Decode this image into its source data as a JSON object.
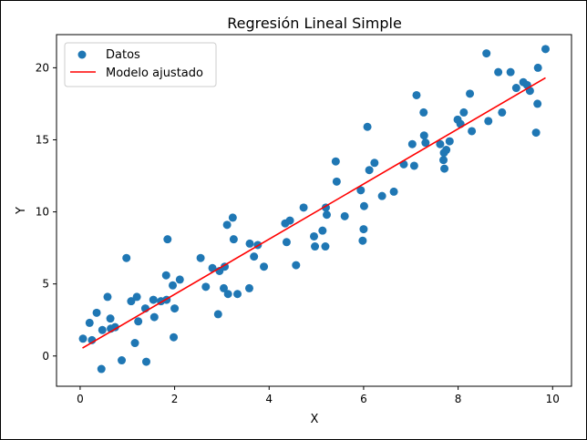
{
  "chart_data": {
    "type": "scatter",
    "title": "Regresión Lineal Simple",
    "xlabel": "X",
    "ylabel": "Y",
    "xlim": [
      -0.5,
      10.4
    ],
    "ylim": [
      -2.1,
      22.3
    ],
    "grid": false,
    "legend_position": "top-left",
    "x_ticks": [
      0,
      2,
      4,
      6,
      8,
      10
    ],
    "y_ticks": [
      0,
      5,
      10,
      15,
      20
    ],
    "x_tick_labels": [
      "0",
      "2",
      "4",
      "6",
      "8",
      "10"
    ],
    "y_tick_labels": [
      "0",
      "5",
      "10",
      "15",
      "20"
    ],
    "series": [
      {
        "name": "Datos",
        "kind": "scatter",
        "color": "#1f77b4",
        "points": [
          [
            0.06,
            1.2
          ],
          [
            0.2,
            2.3
          ],
          [
            0.25,
            1.1
          ],
          [
            0.35,
            3.0
          ],
          [
            0.45,
            -0.9
          ],
          [
            0.47,
            1.8
          ],
          [
            0.58,
            4.1
          ],
          [
            0.64,
            2.6
          ],
          [
            0.65,
            1.9
          ],
          [
            0.74,
            2.0
          ],
          [
            0.88,
            -0.3
          ],
          [
            0.98,
            6.8
          ],
          [
            1.08,
            3.8
          ],
          [
            1.16,
            0.9
          ],
          [
            1.2,
            4.1
          ],
          [
            1.23,
            2.4
          ],
          [
            1.38,
            3.3
          ],
          [
            1.4,
            -0.4
          ],
          [
            1.55,
            3.9
          ],
          [
            1.57,
            2.7
          ],
          [
            1.71,
            3.8
          ],
          [
            1.82,
            5.6
          ],
          [
            1.83,
            3.9
          ],
          [
            1.85,
            8.1
          ],
          [
            1.96,
            4.9
          ],
          [
            1.98,
            1.3
          ],
          [
            2.0,
            3.3
          ],
          [
            2.11,
            5.3
          ],
          [
            2.55,
            6.8
          ],
          [
            2.66,
            4.8
          ],
          [
            2.8,
            6.1
          ],
          [
            2.92,
            2.9
          ],
          [
            2.95,
            5.9
          ],
          [
            3.04,
            4.7
          ],
          [
            3.06,
            6.2
          ],
          [
            3.11,
            9.1
          ],
          [
            3.13,
            4.3
          ],
          [
            3.23,
            9.6
          ],
          [
            3.25,
            8.1
          ],
          [
            3.33,
            4.3
          ],
          [
            3.58,
            4.7
          ],
          [
            3.59,
            7.8
          ],
          [
            3.68,
            6.9
          ],
          [
            3.76,
            7.7
          ],
          [
            3.89,
            6.2
          ],
          [
            4.34,
            9.2
          ],
          [
            4.37,
            7.9
          ],
          [
            4.44,
            9.4
          ],
          [
            4.57,
            6.3
          ],
          [
            4.73,
            10.3
          ],
          [
            4.95,
            8.3
          ],
          [
            4.97,
            7.6
          ],
          [
            5.13,
            8.7
          ],
          [
            5.19,
            7.6
          ],
          [
            5.2,
            10.3
          ],
          [
            5.22,
            9.8
          ],
          [
            5.41,
            13.5
          ],
          [
            5.43,
            12.1
          ],
          [
            5.6,
            9.7
          ],
          [
            5.94,
            11.5
          ],
          [
            5.98,
            8.0
          ],
          [
            6.0,
            8.8
          ],
          [
            6.01,
            10.4
          ],
          [
            6.08,
            15.9
          ],
          [
            6.12,
            12.9
          ],
          [
            6.23,
            13.4
          ],
          [
            6.39,
            11.1
          ],
          [
            6.64,
            11.4
          ],
          [
            6.85,
            13.3
          ],
          [
            7.03,
            14.7
          ],
          [
            7.07,
            13.2
          ],
          [
            7.12,
            18.1
          ],
          [
            7.27,
            16.9
          ],
          [
            7.28,
            15.3
          ],
          [
            7.31,
            14.8
          ],
          [
            7.62,
            14.7
          ],
          [
            7.69,
            13.6
          ],
          [
            7.7,
            14.1
          ],
          [
            7.71,
            13.0
          ],
          [
            7.75,
            14.3
          ],
          [
            7.82,
            14.9
          ],
          [
            7.99,
            16.4
          ],
          [
            8.05,
            16.1
          ],
          [
            8.12,
            16.9
          ],
          [
            8.25,
            18.2
          ],
          [
            8.29,
            15.6
          ],
          [
            8.6,
            21.0
          ],
          [
            8.64,
            16.3
          ],
          [
            8.85,
            19.7
          ],
          [
            8.93,
            16.9
          ],
          [
            9.11,
            19.7
          ],
          [
            9.23,
            18.6
          ],
          [
            9.38,
            19.0
          ],
          [
            9.46,
            18.8
          ],
          [
            9.52,
            18.4
          ],
          [
            9.65,
            15.5
          ],
          [
            9.68,
            17.5
          ],
          [
            9.69,
            20.0
          ],
          [
            9.85,
            21.3
          ]
        ]
      },
      {
        "name": "Modelo ajustado",
        "kind": "line",
        "color": "#ff0000",
        "x": [
          0.05,
          9.85
        ],
        "y": [
          0.55,
          19.3
        ]
      }
    ]
  }
}
